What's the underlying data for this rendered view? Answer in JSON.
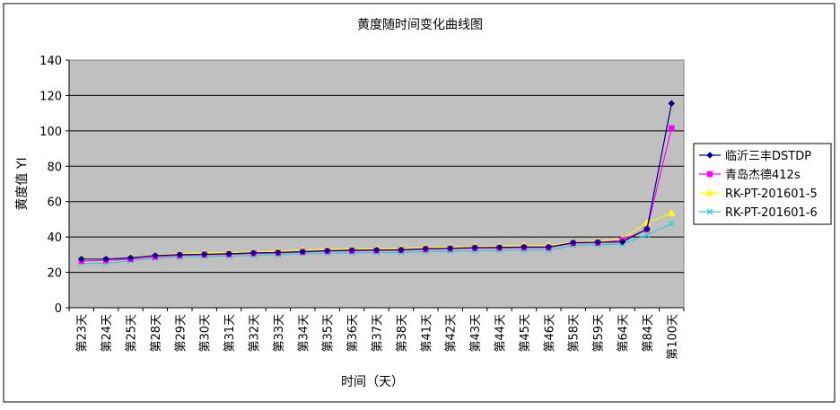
{
  "chart_data": {
    "type": "line",
    "title": "黄度随时间变化曲线图",
    "xlabel": "时间（天）",
    "ylabel": "黄度值 YI",
    "ylim": [
      0,
      140
    ],
    "yticks": [
      0,
      20,
      40,
      60,
      80,
      100,
      120,
      140
    ],
    "grid": true,
    "legend_position": "right",
    "plot_background": "#c0c0c0",
    "categories": [
      "第23天",
      "第24天",
      "第25天",
      "第28天",
      "第29天",
      "第30天",
      "第31天",
      "第32天",
      "第33天",
      "第34天",
      "第35天",
      "第36天",
      "第37天",
      "第38天",
      "第41天",
      "第42天",
      "第43天",
      "第44天",
      "第45天",
      "第46天",
      "第58天",
      "第59天",
      "第64天",
      "第84天",
      "第100天"
    ],
    "series": [
      {
        "name": "临沂三丰DSTDP",
        "color": "#000080",
        "marker": "diamond",
        "values": [
          27.5,
          27.5,
          28.2,
          29.5,
          30.0,
          30.2,
          30.5,
          31.0,
          31.2,
          31.7,
          32.2,
          32.5,
          32.6,
          32.7,
          33.4,
          33.6,
          34.0,
          34.1,
          34.3,
          34.3,
          36.8,
          37.0,
          37.2,
          44.5,
          115.5
        ]
      },
      {
        "name": "青岛杰德412s",
        "color": "#ff00ff",
        "marker": "square",
        "values": [
          26.5,
          26.8,
          27.5,
          28.8,
          29.6,
          30.0,
          30.2,
          30.7,
          31.0,
          31.5,
          32.0,
          32.2,
          32.3,
          32.5,
          33.0,
          33.4,
          33.7,
          33.8,
          34.0,
          34.0,
          36.5,
          36.8,
          38.2,
          44.3,
          101.5
        ]
      },
      {
        "name": "RK-PT-201601-5",
        "color": "#ffff00",
        "marker": "triangle",
        "values": [
          27.0,
          27.2,
          28.5,
          29.7,
          30.6,
          31.0,
          31.2,
          31.5,
          32.0,
          32.6,
          33.0,
          33.2,
          33.3,
          33.6,
          34.1,
          34.3,
          34.6,
          34.8,
          35.3,
          35.1,
          37.2,
          37.5,
          39.0,
          48.0,
          53.5
        ]
      },
      {
        "name": "RK-PT-201601-6",
        "color": "#33cccc",
        "marker": "x",
        "values": [
          25.0,
          25.2,
          26.5,
          28.0,
          28.6,
          28.9,
          29.2,
          29.6,
          30.0,
          30.5,
          30.8,
          31.0,
          31.1,
          31.2,
          31.7,
          31.9,
          32.2,
          32.4,
          32.6,
          32.5,
          35.2,
          35.5,
          36.0,
          41.2,
          47.5
        ]
      }
    ]
  }
}
